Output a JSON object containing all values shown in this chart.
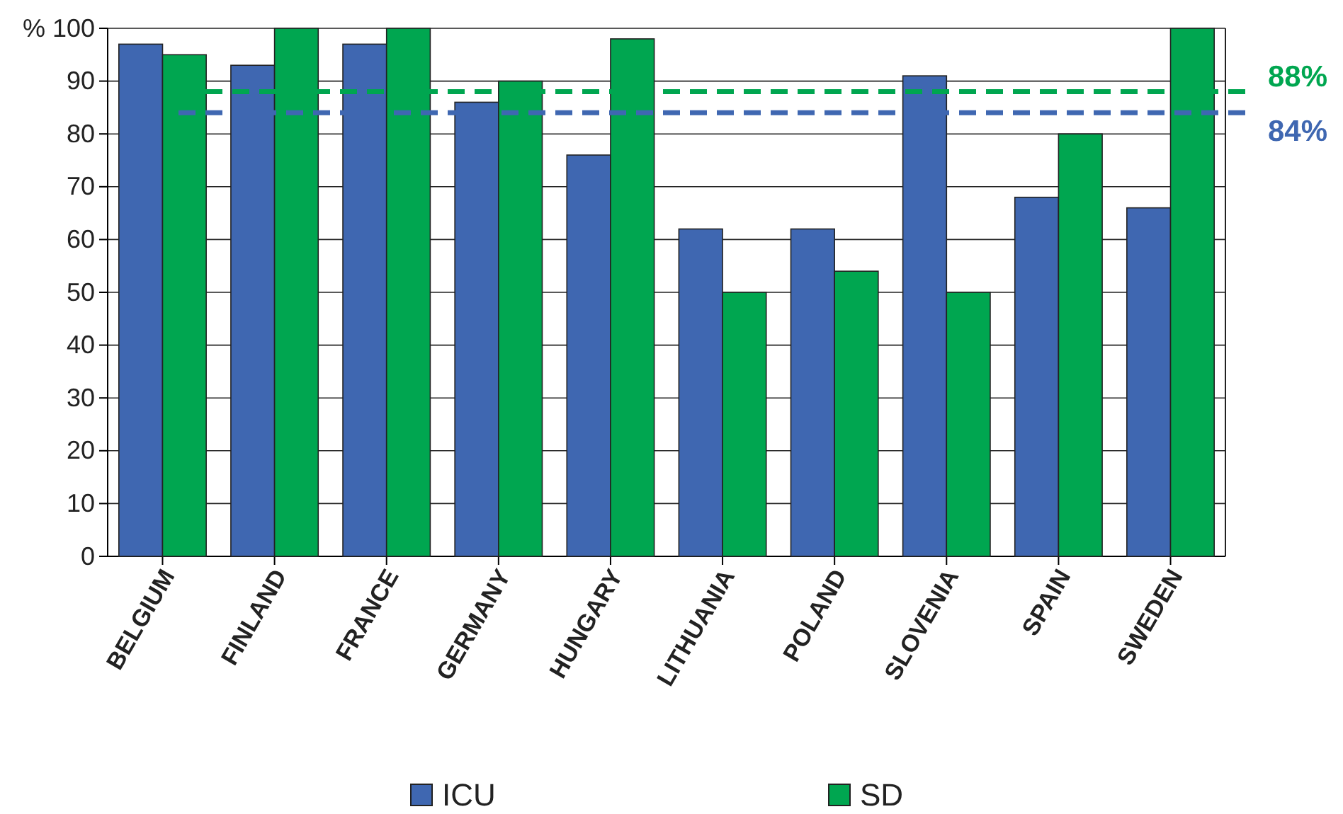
{
  "chart_data": {
    "type": "bar",
    "ylabel": "%",
    "categories": [
      "BELGIUM",
      "FINLAND",
      "FRANCE",
      "GERMANY",
      "HUNGARY",
      "LITHUANIA",
      "POLAND",
      "SLOVENIA",
      "SPAIN",
      "SWEDEN"
    ],
    "series": [
      {
        "name": "ICU",
        "color": "#3f67b1",
        "values": [
          97,
          93,
          97,
          86,
          76,
          62,
          62,
          91,
          68,
          66
        ]
      },
      {
        "name": "SD",
        "color": "#00a650",
        "values": [
          95,
          100,
          100,
          90,
          98,
          50,
          54,
          50,
          80,
          100
        ]
      }
    ],
    "ylim": [
      0,
      100
    ],
    "yticks": [
      0,
      10,
      20,
      30,
      40,
      50,
      60,
      70,
      80,
      90,
      100
    ],
    "grid": "y",
    "legend": "bottom",
    "ref_lines": [
      {
        "axis": "y",
        "value": 88,
        "label": "88%",
        "color": "#00a650",
        "line_style": "dashed"
      },
      {
        "axis": "y",
        "value": 84,
        "label": "84%",
        "color": "#3f67b1",
        "line_style": "dashed"
      }
    ]
  }
}
